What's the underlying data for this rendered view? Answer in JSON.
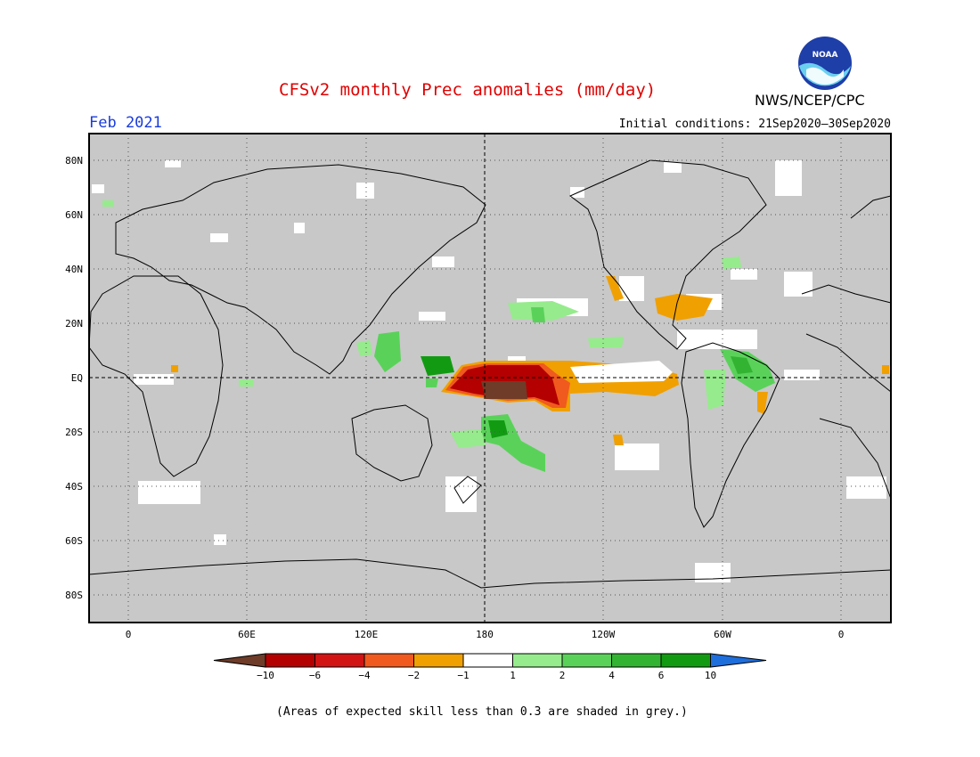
{
  "title": "CFSv2 monthly Prec anomalies (mm/day)",
  "month": "Feb 2021",
  "initial_conditions": "Initial conditions: 21Sep2020–30Sep2020",
  "agency": "NWS/NCEP/CPC",
  "logo_text": "NOAA",
  "footnote": "(Areas of expected skill less than 0.3 are shaded in grey.)",
  "map": {
    "background_color": "#c8c8c8",
    "lon_labels": [
      "0",
      "60E",
      "120E",
      "180",
      "120W",
      "60W",
      "0"
    ],
    "lat_labels": [
      "80N",
      "60N",
      "40N",
      "20N",
      "EQ",
      "20S",
      "40S",
      "60S",
      "80S"
    ]
  },
  "legend": {
    "labels": [
      "−10",
      "−6",
      "−4",
      "−2",
      "−1",
      "1",
      "2",
      "4",
      "6",
      "10"
    ],
    "colors": [
      "#6e3c28",
      "#b40000",
      "#d21414",
      "#f05a1e",
      "#f0a000",
      "#ffffff",
      "#96eb8c",
      "#5ad25a",
      "#32b432",
      "#129b12",
      "#1e6edc"
    ]
  }
}
